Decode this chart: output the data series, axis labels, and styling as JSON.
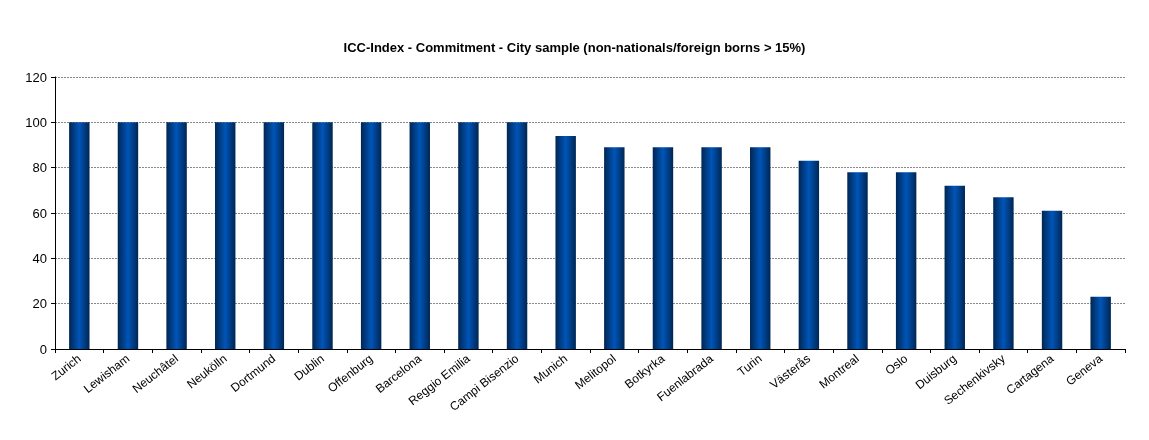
{
  "chart_data": {
    "type": "bar",
    "title": "ICC-Index - Commitment - City sample (non-nationals/foreign borns > 15%)",
    "categories": [
      "Zurich",
      "Lewisham",
      "Neuchâtel",
      "Neukölln",
      "Dortmund",
      "Dublin",
      "Offenburg",
      "Barcelona",
      "Reggio Emilia",
      "Campi Bisenzio",
      "Munich",
      "Melitopol",
      "Botkyrka",
      "Fuenlabrada",
      "Turin",
      "Västerås",
      "Montreal",
      "Oslo",
      "Duisburg",
      "Sechenkivsky",
      "Cartagena",
      "Geneva"
    ],
    "values": [
      100,
      100,
      100,
      100,
      100,
      100,
      100,
      100,
      100,
      100,
      94,
      89,
      89,
      89,
      89,
      83,
      78,
      78,
      72,
      67,
      61,
      23
    ],
    "color": "#0055b8",
    "ylim": [
      0,
      120
    ],
    "yticks": [
      0,
      20,
      40,
      60,
      80,
      100,
      120
    ],
    "grid": "y"
  }
}
